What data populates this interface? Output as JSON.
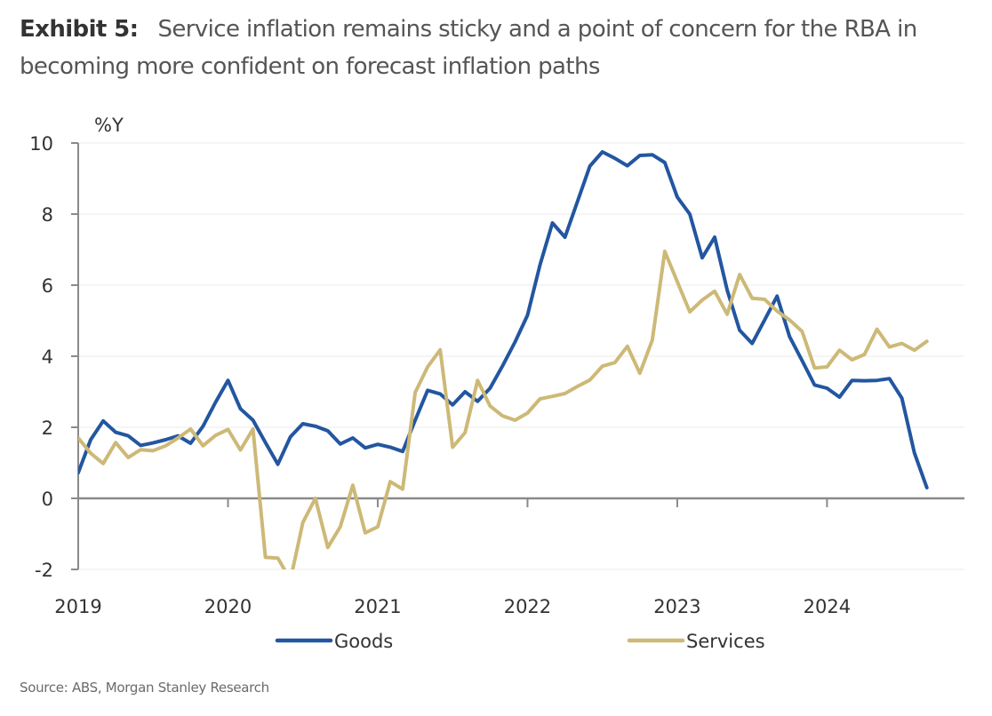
{
  "header": {
    "exhibit_label": "Exhibit 5:",
    "title": "Service inflation remains sticky and a point of concern for the RBA in becoming more confident on forecast inflation paths"
  },
  "footer": {
    "source": "Source: ABS, Morgan Stanley Research"
  },
  "chart_data": {
    "type": "line",
    "title": "Service inflation remains sticky and a point of concern for the RBA in becoming more confident on forecast inflation paths",
    "xlabel": "",
    "ylabel": "%Y",
    "x_start": "2019-01",
    "x_frequency": "monthly",
    "x_ticks": [
      "2019",
      "2020",
      "2021",
      "2022",
      "2023",
      "2024"
    ],
    "ylim": [
      -2,
      10
    ],
    "y_ticks": [
      "-2",
      "0",
      "2",
      "4",
      "6",
      "8",
      "10"
    ],
    "grid": "horizontal",
    "legend_position": "bottom",
    "series": [
      {
        "name": "Goods",
        "color": "#2356A0",
        "values": [
          0.72,
          1.65,
          2.18,
          1.86,
          1.76,
          1.49,
          1.56,
          1.65,
          1.76,
          1.55,
          2.03,
          2.7,
          3.32,
          2.52,
          2.2,
          1.57,
          0.96,
          1.73,
          2.1,
          2.03,
          1.9,
          1.53,
          1.7,
          1.42,
          1.52,
          1.44,
          1.32,
          2.2,
          3.04,
          2.94,
          2.63,
          3.0,
          2.73,
          3.1,
          3.73,
          4.4,
          5.15,
          6.57,
          7.75,
          7.35,
          8.35,
          9.35,
          9.75,
          9.57,
          9.36,
          9.65,
          9.67,
          9.45,
          8.48,
          8.0,
          6.77,
          7.35,
          5.86,
          4.73,
          4.36,
          5.02,
          5.69,
          4.55,
          3.88,
          3.19,
          3.1,
          2.85,
          3.32,
          3.31,
          3.32,
          3.37,
          2.82,
          1.28,
          0.3
        ]
      },
      {
        "name": "Services",
        "color": "#CDB977",
        "values": [
          1.7,
          1.27,
          0.98,
          1.57,
          1.15,
          1.37,
          1.34,
          1.48,
          1.7,
          1.95,
          1.48,
          1.77,
          1.94,
          1.36,
          1.95,
          -1.66,
          -1.68,
          -2.3,
          -0.68,
          0.0,
          -1.38,
          -0.8,
          0.37,
          -0.97,
          -0.8,
          0.47,
          0.26,
          2.98,
          3.7,
          4.18,
          1.44,
          1.85,
          3.32,
          2.6,
          2.32,
          2.2,
          2.4,
          2.8,
          2.87,
          2.95,
          3.15,
          3.33,
          3.72,
          3.82,
          4.28,
          3.52,
          4.45,
          6.95,
          6.1,
          5.25,
          5.58,
          5.83,
          5.18,
          6.3,
          5.63,
          5.6,
          5.27,
          5.02,
          4.7,
          3.67,
          3.7,
          4.17,
          3.9,
          4.05,
          4.76,
          4.26,
          4.36,
          4.17,
          4.42
        ]
      }
    ]
  }
}
